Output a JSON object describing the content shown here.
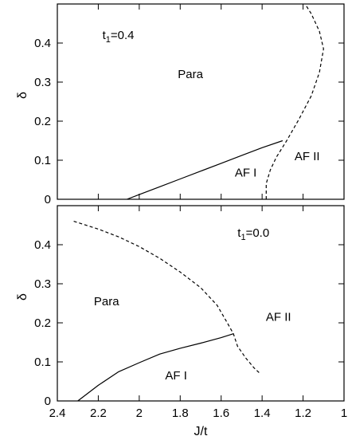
{
  "chart_data": [
    {
      "type": "line",
      "panel": "top",
      "xlim": [
        2.4,
        1.0
      ],
      "ylim": [
        0,
        0.5
      ],
      "x_reversed": true,
      "xticks": [],
      "yticks": [
        {
          "value": 0,
          "label": "0"
        },
        {
          "value": 0.1,
          "label": "0.1"
        },
        {
          "value": 0.2,
          "label": "0.2"
        },
        {
          "value": 0.3,
          "label": "0.3"
        },
        {
          "value": 0.4,
          "label": "0.4"
        }
      ],
      "xlabel": "",
      "ylabel": "δ",
      "grid": false,
      "annotations": [
        {
          "text": "Para",
          "x": 1.75,
          "y": 0.31
        },
        {
          "text": "AF I",
          "x": 1.48,
          "y": 0.058
        },
        {
          "text": "AF II",
          "x": 1.18,
          "y": 0.1
        },
        {
          "text": "t",
          "sub": "1",
          "suffix": "=0.4",
          "x": 2.18,
          "y": 0.41
        }
      ],
      "series": [
        {
          "style": "solid",
          "points": [
            [
              2.06,
              0
            ],
            [
              2.0,
              0.012
            ],
            [
              1.9,
              0.032
            ],
            [
              1.8,
              0.052
            ],
            [
              1.7,
              0.072
            ],
            [
              1.6,
              0.092
            ],
            [
              1.5,
              0.112
            ],
            [
              1.4,
              0.132
            ],
            [
              1.3,
              0.15
            ]
          ]
        },
        {
          "style": "dashed",
          "points": [
            [
              1.38,
              0
            ],
            [
              1.38,
              0.04
            ],
            [
              1.36,
              0.075
            ],
            [
              1.33,
              0.108
            ],
            [
              1.28,
              0.15
            ],
            [
              1.22,
              0.205
            ],
            [
              1.16,
              0.265
            ],
            [
              1.12,
              0.325
            ],
            [
              1.1,
              0.385
            ],
            [
              1.12,
              0.43
            ],
            [
              1.16,
              0.475
            ],
            [
              1.19,
              0.5
            ]
          ]
        }
      ]
    },
    {
      "type": "line",
      "panel": "bottom",
      "xlim": [
        2.4,
        1.0
      ],
      "ylim": [
        0,
        0.5
      ],
      "x_reversed": true,
      "xticks": [
        {
          "value": 2.4,
          "label": "2.4"
        },
        {
          "value": 2.2,
          "label": "2.2"
        },
        {
          "value": 2.0,
          "label": "2"
        },
        {
          "value": 1.8,
          "label": "1.8"
        },
        {
          "value": 1.6,
          "label": "1.6"
        },
        {
          "value": 1.4,
          "label": "1.4"
        },
        {
          "value": 1.2,
          "label": "1.2"
        },
        {
          "value": 1.0,
          "label": "1"
        }
      ],
      "yticks": [
        {
          "value": 0,
          "label": "0"
        },
        {
          "value": 0.1,
          "label": "0.1"
        },
        {
          "value": 0.2,
          "label": "0.2"
        },
        {
          "value": 0.3,
          "label": "0.3"
        },
        {
          "value": 0.4,
          "label": "0.4"
        }
      ],
      "xlabel": "J/t",
      "ylabel": "δ",
      "grid": false,
      "annotations": [
        {
          "text": "Para",
          "x": 2.16,
          "y": 0.245
        },
        {
          "text": "AF I",
          "x": 1.82,
          "y": 0.055
        },
        {
          "text": "AF II",
          "x": 1.32,
          "y": 0.205
        },
        {
          "text": "t",
          "sub": "1",
          "suffix": "=0.0",
          "x": 1.52,
          "y": 0.42
        }
      ],
      "series": [
        {
          "style": "solid",
          "points": [
            [
              2.3,
              0
            ],
            [
              2.2,
              0.04
            ],
            [
              2.1,
              0.075
            ],
            [
              2.0,
              0.098
            ],
            [
              1.9,
              0.12
            ],
            [
              1.8,
              0.135
            ],
            [
              1.7,
              0.148
            ],
            [
              1.6,
              0.162
            ],
            [
              1.54,
              0.172
            ]
          ]
        },
        {
          "style": "dashed",
          "points": [
            [
              2.32,
              0.46
            ],
            [
              2.2,
              0.44
            ],
            [
              2.1,
              0.42
            ],
            [
              2.0,
              0.395
            ],
            [
              1.9,
              0.365
            ],
            [
              1.8,
              0.33
            ],
            [
              1.7,
              0.29
            ],
            [
              1.62,
              0.245
            ],
            [
              1.57,
              0.2
            ],
            [
              1.54,
              0.172
            ],
            [
              1.52,
              0.14
            ],
            [
              1.48,
              0.11
            ],
            [
              1.44,
              0.085
            ],
            [
              1.41,
              0.07
            ]
          ]
        }
      ]
    }
  ]
}
